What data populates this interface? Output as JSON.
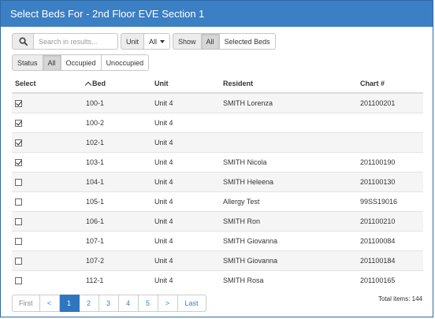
{
  "window": {
    "title": "Select Beds For - 2nd Floor EVE Section 1"
  },
  "toolbar": {
    "search_placeholder": "Search in results...",
    "unit_label": "Unit",
    "unit_value": "All",
    "show_label": "Show",
    "show_all": "All",
    "show_selected": "Selected Beds"
  },
  "status": {
    "label": "Status",
    "all": "All",
    "occupied": "Occupied",
    "unoccupied": "Unoccupied"
  },
  "table": {
    "headers": {
      "select": "Select",
      "bed": "Bed",
      "unit": "Unit",
      "resident": "Resident",
      "chart": "Chart #"
    },
    "rows": [
      {
        "selected": true,
        "bed": "100-1",
        "unit": "Unit 4",
        "resident": "SMITH Lorenza",
        "chart": "201100201"
      },
      {
        "selected": true,
        "bed": "100-2",
        "unit": "Unit 4",
        "resident": "",
        "chart": ""
      },
      {
        "selected": true,
        "bed": "102-1",
        "unit": "Unit 4",
        "resident": "",
        "chart": ""
      },
      {
        "selected": true,
        "bed": "103-1",
        "unit": "Unit 4",
        "resident": "SMITH Nicola",
        "chart": "201100190"
      },
      {
        "selected": false,
        "bed": "104-1",
        "unit": "Unit 4",
        "resident": "SMITH Heleena",
        "chart": "201100130"
      },
      {
        "selected": false,
        "bed": "105-1",
        "unit": "Unit 4",
        "resident": "Allergy Test",
        "chart": "99SS19016"
      },
      {
        "selected": false,
        "bed": "106-1",
        "unit": "Unit 4",
        "resident": "SMITH Ron",
        "chart": "201100210"
      },
      {
        "selected": false,
        "bed": "107-1",
        "unit": "Unit 4",
        "resident": "SMITH Giovanna",
        "chart": "201100084"
      },
      {
        "selected": false,
        "bed": "107-2",
        "unit": "Unit 4",
        "resident": "SMITH Giovanna",
        "chart": "201100184"
      },
      {
        "selected": false,
        "bed": "112-1",
        "unit": "Unit 4",
        "resident": "SMITH Rosa",
        "chart": "201100165"
      }
    ]
  },
  "pagination": {
    "first": "First",
    "prev": "<",
    "pages": [
      "1",
      "2",
      "3",
      "4",
      "5"
    ],
    "current": "1",
    "next": ">",
    "last": "Last",
    "total": "Total items: 144"
  },
  "colors": {
    "title_bar": "#3b7fc4",
    "active_page": "#2f76c0"
  },
  "icons": {
    "search": "search-icon",
    "sort": "sort-ascending-icon",
    "dropdown": "chevron-down-icon"
  }
}
